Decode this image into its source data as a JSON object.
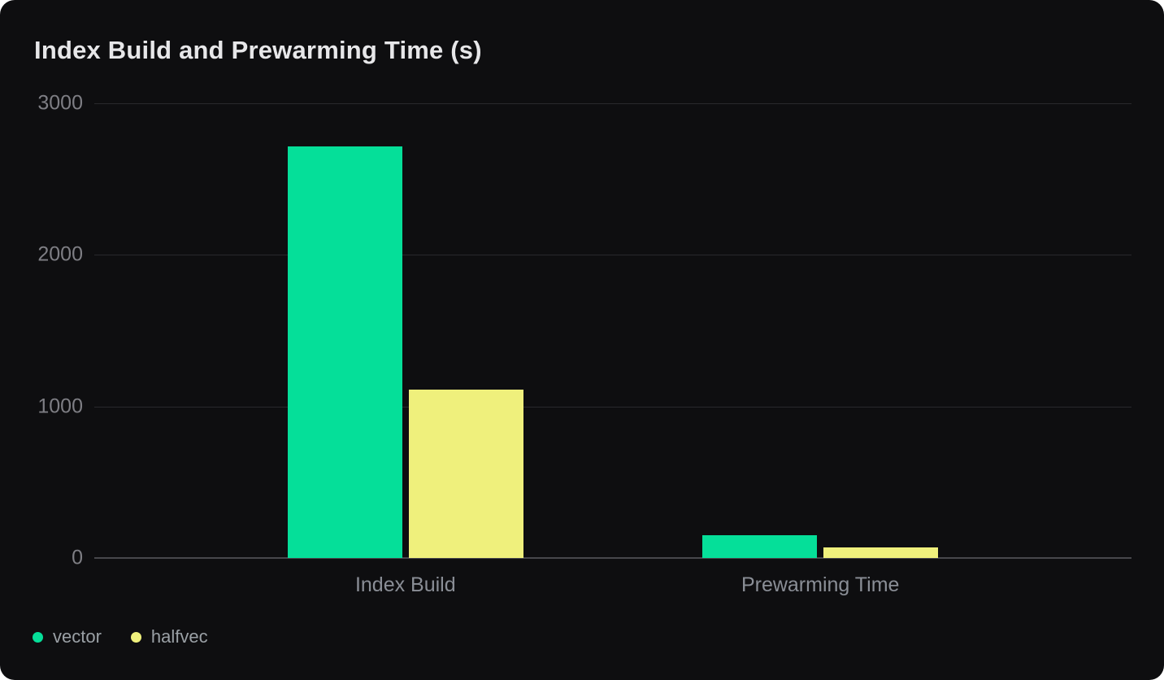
{
  "chart_data": {
    "type": "bar",
    "title": "Index Build and Prewarming Time (s)",
    "categories": [
      "Index Build",
      "Prewarming Time"
    ],
    "series": [
      {
        "name": "vector",
        "color": "#05df99",
        "values": [
          2715,
          150
        ]
      },
      {
        "name": "halfvec",
        "color": "#eff07c",
        "values": [
          1110,
          70
        ]
      }
    ],
    "ylim": [
      0,
      3000
    ],
    "yticks": [
      0,
      1000,
      2000,
      3000
    ],
    "grid": true,
    "legend_position": "bottom-left",
    "xlabel": "",
    "ylabel": ""
  },
  "colors": {
    "page_background": "#ffffff",
    "card_background": "#0e0e10",
    "title_text": "#e7e7e9",
    "tick_text": "#7e7e84",
    "category_text": "#8a8e96",
    "legend_text": "#9aa0a5",
    "gridline": "#29292d",
    "baseline": "#47474b"
  }
}
